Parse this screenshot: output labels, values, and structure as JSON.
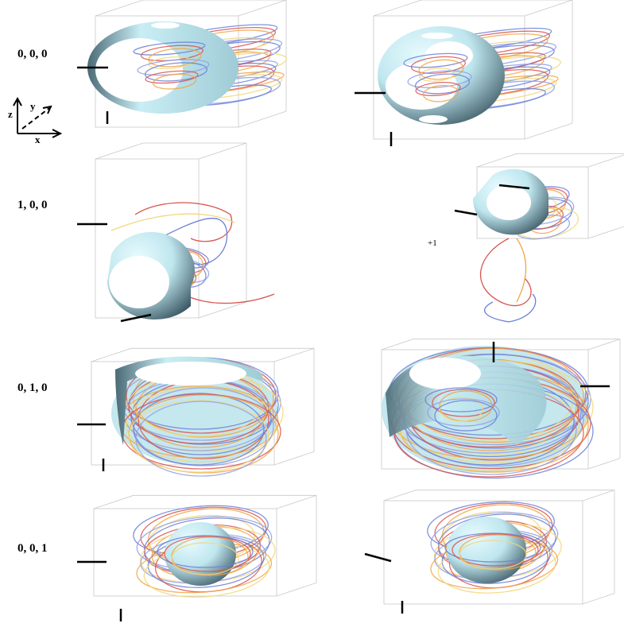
{
  "rows": [
    {
      "label": "0, 0, 0"
    },
    {
      "label": "1, 0, 0"
    },
    {
      "label": "0, 1, 0"
    },
    {
      "label": "0, 0, 1"
    }
  ],
  "axes": {
    "z": "z",
    "y": "y",
    "x": "x"
  },
  "annotation": "+1"
}
